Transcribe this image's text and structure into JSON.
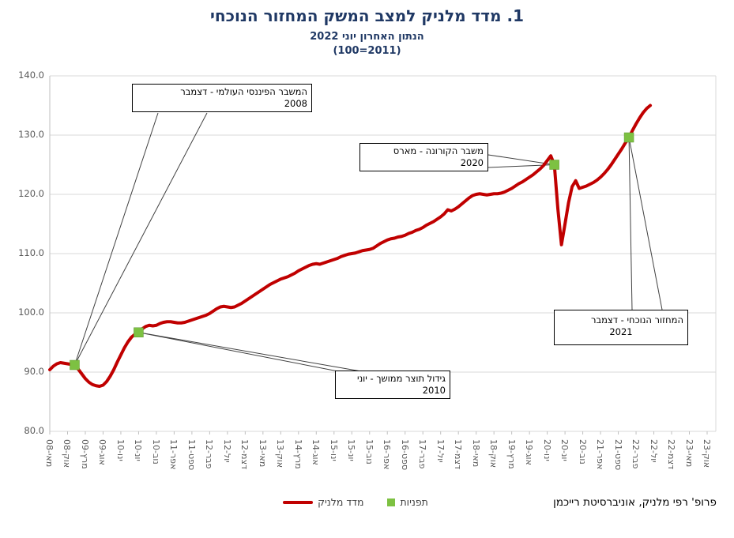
{
  "title": "1. מדד מלניק למצב המשק המחזור הנוכחי",
  "subtitle1": "הנתון האחרון יוני 2022",
  "subtitle2": "(100=2011)",
  "credit": "פרופ' רפי מלניק, אוניברסיטת רייכמן",
  "colors": {
    "title": "#1f3864",
    "line": "#c00000",
    "marker": "#7dc142",
    "gridline": "#d9d9d9",
    "axis_text": "#595959"
  },
  "legend": {
    "series_label": "מדד מלניק",
    "markers_label": "תפניות"
  },
  "annotations": [
    {
      "id": "financial-crisis-2008",
      "line1": "המשבר הפיננסי העולמי - דצמבר",
      "line2": "2008",
      "point_index": 0
    },
    {
      "id": "growth-2010",
      "line1": "גידול תוצר ממושך - יוני",
      "line2": "2010",
      "point_index": 1
    },
    {
      "id": "corona-2020",
      "line1": "משבר הקורונה - מארס",
      "line2": "2020",
      "point_index": 2
    },
    {
      "id": "current-cycle-2021",
      "line1": "המחזור הנוכחי - דצמבר",
      "line2": "2021",
      "point_index": 3
    }
  ],
  "chart_data": {
    "type": "line",
    "title": "1. מדד מלניק למצב המשק המחזור הנוכחי",
    "ylabel": "",
    "xlabel": "",
    "ylim": [
      80,
      140
    ],
    "ytick_step": 10,
    "y_ticks": [
      "140.0",
      "130.0",
      "120.0",
      "110.0",
      "100.0",
      "90.0",
      "80.0"
    ],
    "x_months_total": 186,
    "months_per_tick": 5,
    "x_tick_labels": [
      "מאי-08",
      "אוק-08",
      "מרץ-09",
      "אוג-09",
      "ינו-10",
      "יונ-10",
      "נוב-10",
      "אפר-11",
      "ספט-11",
      "פבר-12",
      "יול-12",
      "דצמ-12",
      "מאי-13",
      "אוק-13",
      "מרץ-14",
      "אוג-14",
      "ינו-15",
      "יונ-15",
      "נוב-15",
      "אפר-16",
      "ספט-16",
      "פבר-17",
      "יול-17",
      "דצמ-17",
      "מאי-18",
      "אוק-18",
      "מרץ-19",
      "אוג-19",
      "ינו-20",
      "יונ-20",
      "נוב-20",
      "אפר-21",
      "ספט-21",
      "פבר-22",
      "יול-22",
      "דצמ-22",
      "מאי-23",
      "אוק-23"
    ],
    "grid": true,
    "legend_position": "bottom",
    "series": [
      {
        "name": "מדד מלניק",
        "color": "#c00000",
        "start": "2008-05",
        "end": "2022-06",
        "frequency": "monthly",
        "values": [
          90.4,
          91.0,
          91.4,
          91.6,
          91.5,
          91.4,
          91.3,
          91.2,
          90.5,
          89.7,
          88.9,
          88.3,
          87.9,
          87.7,
          87.6,
          87.8,
          88.4,
          89.3,
          90.4,
          91.7,
          92.9,
          94.1,
          95.1,
          95.9,
          96.4,
          96.7,
          97.3,
          97.7,
          97.9,
          97.8,
          97.9,
          98.2,
          98.4,
          98.5,
          98.5,
          98.4,
          98.3,
          98.3,
          98.4,
          98.6,
          98.8,
          99.0,
          99.2,
          99.4,
          99.6,
          99.9,
          100.3,
          100.7,
          101.0,
          101.1,
          101.0,
          100.9,
          101.0,
          101.3,
          101.6,
          102.0,
          102.4,
          102.8,
          103.2,
          103.6,
          104.0,
          104.4,
          104.8,
          105.1,
          105.4,
          105.7,
          105.9,
          106.1,
          106.4,
          106.7,
          107.1,
          107.4,
          107.7,
          108.0,
          108.2,
          108.3,
          108.2,
          108.4,
          108.6,
          108.8,
          109.0,
          109.2,
          109.5,
          109.7,
          109.9,
          110.0,
          110.1,
          110.3,
          110.5,
          110.6,
          110.7,
          110.9,
          111.3,
          111.7,
          112.0,
          112.3,
          112.5,
          112.6,
          112.8,
          112.9,
          113.1,
          113.4,
          113.6,
          113.9,
          114.1,
          114.4,
          114.8,
          115.1,
          115.4,
          115.8,
          116.2,
          116.7,
          117.4,
          117.2,
          117.5,
          117.9,
          118.4,
          118.9,
          119.4,
          119.8,
          120.0,
          120.1,
          120.0,
          119.9,
          120.0,
          120.1,
          120.1,
          120.2,
          120.4,
          120.7,
          121.0,
          121.4,
          121.8,
          122.1,
          122.5,
          122.9,
          123.3,
          123.8,
          124.3,
          124.9,
          125.7,
          126.5,
          125.0,
          117.5,
          111.5,
          115.0,
          118.6,
          121.3,
          122.3,
          121.0,
          121.2,
          121.4,
          121.7,
          122.0,
          122.4,
          122.9,
          123.5,
          124.2,
          125.0,
          125.9,
          126.8,
          127.7,
          128.7,
          129.6,
          130.8,
          131.9,
          132.9,
          133.8,
          134.5,
          135.0
        ]
      }
    ],
    "turning_points": {
      "name": "תפניות",
      "color": "#7dc142",
      "points": [
        {
          "date": "2008-12",
          "index": 7,
          "value": 91.2
        },
        {
          "date": "2010-06",
          "index": 25,
          "value": 96.7
        },
        {
          "date": "2020-03",
          "index": 142,
          "value": 125.0
        },
        {
          "date": "2021-12",
          "index": 163,
          "value": 129.6
        }
      ]
    }
  }
}
